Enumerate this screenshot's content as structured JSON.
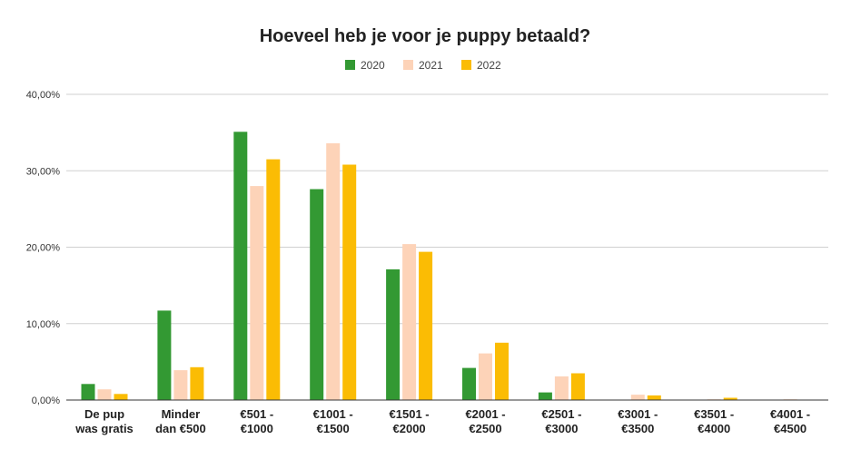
{
  "chart_data": {
    "type": "bar",
    "title": "Hoeveel heb je voor je puppy betaald?",
    "xlabel": "",
    "ylabel": "",
    "ylim": [
      0,
      40
    ],
    "yticks": [
      0,
      10,
      20,
      30,
      40
    ],
    "ytick_labels": [
      "0,00%",
      "10,00%",
      "20,00%",
      "30,00%",
      "40,00%"
    ],
    "grid": true,
    "legend_position": "top-center",
    "categories": [
      [
        "De pup",
        "was gratis"
      ],
      [
        "Minder",
        "dan €500"
      ],
      [
        "€501 -",
        "€1000"
      ],
      [
        "€1001 -",
        "€1500"
      ],
      [
        "€1501 -",
        "€2000"
      ],
      [
        "€2001 -",
        "€2500"
      ],
      [
        "€2501 -",
        "€3000"
      ],
      [
        "€3001 -",
        "€3500"
      ],
      [
        "€3501 -",
        "€4000"
      ],
      [
        "€4001 -",
        "€4500"
      ]
    ],
    "series": [
      {
        "name": "2020",
        "color": "#339933",
        "values": [
          2.1,
          11.7,
          35.1,
          27.6,
          17.1,
          4.2,
          1.0,
          0.0,
          0.0,
          0.0
        ]
      },
      {
        "name": "2021",
        "color": "#fdd3b8",
        "values": [
          1.4,
          3.9,
          28.0,
          33.6,
          20.4,
          6.1,
          3.1,
          0.7,
          0.1,
          0.1
        ]
      },
      {
        "name": "2022",
        "color": "#fbbc04",
        "values": [
          0.8,
          4.3,
          31.5,
          30.8,
          19.4,
          7.5,
          3.5,
          0.6,
          0.3,
          0.0
        ]
      }
    ]
  }
}
